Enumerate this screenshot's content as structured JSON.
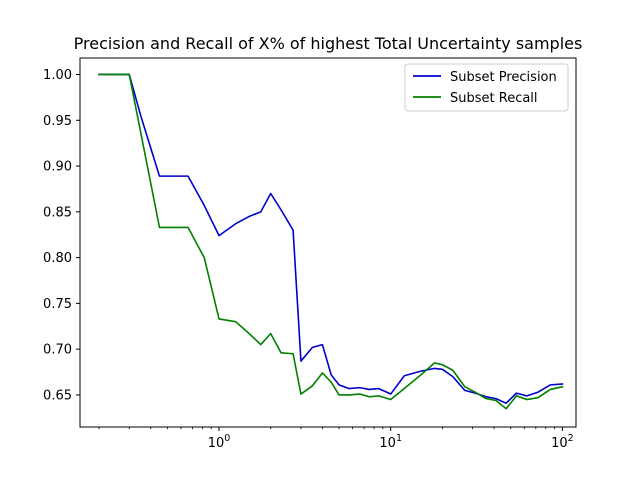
{
  "chart_data": {
    "type": "line",
    "title": "Precision and Recall of X% of highest Total Uncertainty samples",
    "xlabel": "",
    "ylabel": "",
    "xscale": "log",
    "xlim": [
      0.155,
      120
    ],
    "ylim": [
      0.615,
      1.018
    ],
    "x_tick_values": [
      1,
      10,
      100
    ],
    "x_tick_labels": [
      "10^0",
      "10^1",
      "10^2"
    ],
    "y_tick_values": [
      0.65,
      0.7,
      0.75,
      0.8,
      0.85,
      0.9,
      0.95,
      1.0
    ],
    "y_tick_labels": [
      "0.65",
      "0.70",
      "0.75",
      "0.80",
      "0.85",
      "0.90",
      "0.95",
      "1.00"
    ],
    "grid": false,
    "legend": "top-right",
    "series": [
      {
        "name": "Subset Precision",
        "color": "#0000cc",
        "x": [
          0.2,
          0.25,
          0.3,
          0.35,
          0.45,
          0.55,
          0.66,
          0.82,
          1.0,
          1.25,
          1.5,
          1.75,
          2.0,
          2.3,
          2.7,
          3.0,
          3.5,
          4.0,
          4.5,
          5.0,
          5.7,
          6.6,
          7.5,
          8.5,
          10.0,
          12.0,
          15.0,
          18.0,
          20.0,
          23.0,
          27.0,
          31.0,
          36.0,
          41.0,
          47.0,
          54.0,
          62.0,
          72.0,
          85.0,
          100.0
        ],
        "y": [
          1.0,
          1.0,
          1.0,
          0.955,
          0.889,
          0.889,
          0.889,
          0.857,
          0.824,
          0.837,
          0.845,
          0.85,
          0.87,
          0.852,
          0.83,
          0.687,
          0.702,
          0.705,
          0.672,
          0.661,
          0.657,
          0.658,
          0.656,
          0.657,
          0.651,
          0.671,
          0.676,
          0.679,
          0.678,
          0.67,
          0.655,
          0.652,
          0.648,
          0.646,
          0.641,
          0.652,
          0.649,
          0.653,
          0.661,
          0.662
        ]
      },
      {
        "name": "Subset Recall",
        "color": "#007f00",
        "x": [
          0.2,
          0.25,
          0.3,
          0.45,
          0.66,
          0.82,
          1.0,
          1.25,
          1.5,
          1.75,
          2.0,
          2.3,
          2.7,
          3.0,
          3.5,
          4.0,
          4.5,
          5.0,
          5.7,
          6.6,
          7.5,
          8.5,
          10.0,
          12.0,
          15.0,
          18.0,
          20.0,
          23.0,
          27.0,
          31.0,
          36.0,
          41.0,
          47.0,
          54.0,
          62.0,
          72.0,
          85.0,
          100.0
        ],
        "y": [
          1.0,
          1.0,
          1.0,
          0.833,
          0.833,
          0.8,
          0.733,
          0.73,
          0.717,
          0.705,
          0.717,
          0.696,
          0.695,
          0.651,
          0.66,
          0.674,
          0.664,
          0.65,
          0.65,
          0.651,
          0.648,
          0.649,
          0.645,
          0.657,
          0.672,
          0.685,
          0.683,
          0.677,
          0.659,
          0.653,
          0.646,
          0.644,
          0.635,
          0.649,
          0.645,
          0.647,
          0.656,
          0.659
        ]
      }
    ]
  }
}
